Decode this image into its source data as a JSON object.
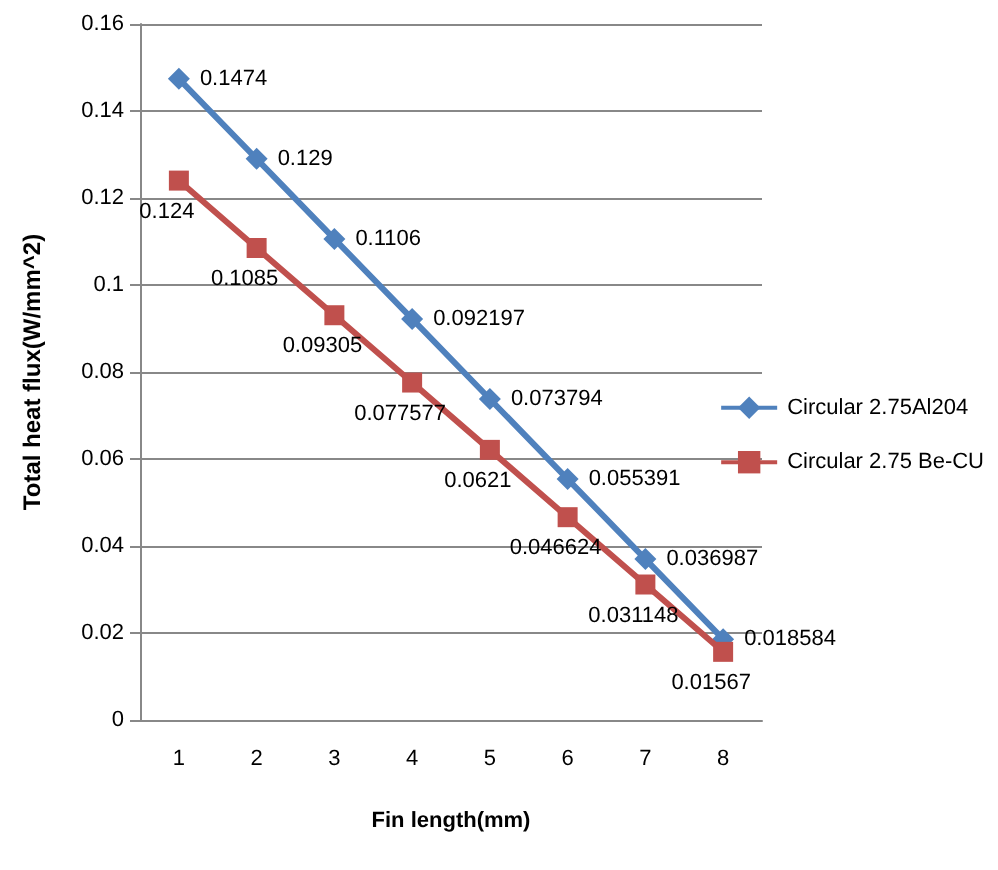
{
  "chart_data": {
    "type": "line",
    "xlabel": "Fin length(mm)",
    "ylabel": "Total heat flux(W/mm^2)",
    "categories": [
      "1",
      "2",
      "3",
      "4",
      "5",
      "6",
      "7",
      "8"
    ],
    "series": [
      {
        "name": "Circular 2.75Al204",
        "color": "#4f81bd",
        "marker": "diamond",
        "values": [
          0.1474,
          0.129,
          0.1106,
          0.092197,
          0.073794,
          0.055391,
          0.036987,
          0.018584
        ]
      },
      {
        "name": "Circular 2.75 Be-CU",
        "color": "#c0504d",
        "marker": "square",
        "values": [
          0.124,
          0.1085,
          0.09305,
          0.077577,
          0.0621,
          0.046624,
          0.031148,
          0.01567
        ]
      }
    ],
    "ylim": [
      0,
      0.16
    ],
    "yticks": [
      0,
      0.02,
      0.04,
      0.06,
      0.08,
      0.1,
      0.12,
      0.14,
      0.16
    ],
    "grid": "y",
    "legend": "right",
    "data_labels": true
  }
}
